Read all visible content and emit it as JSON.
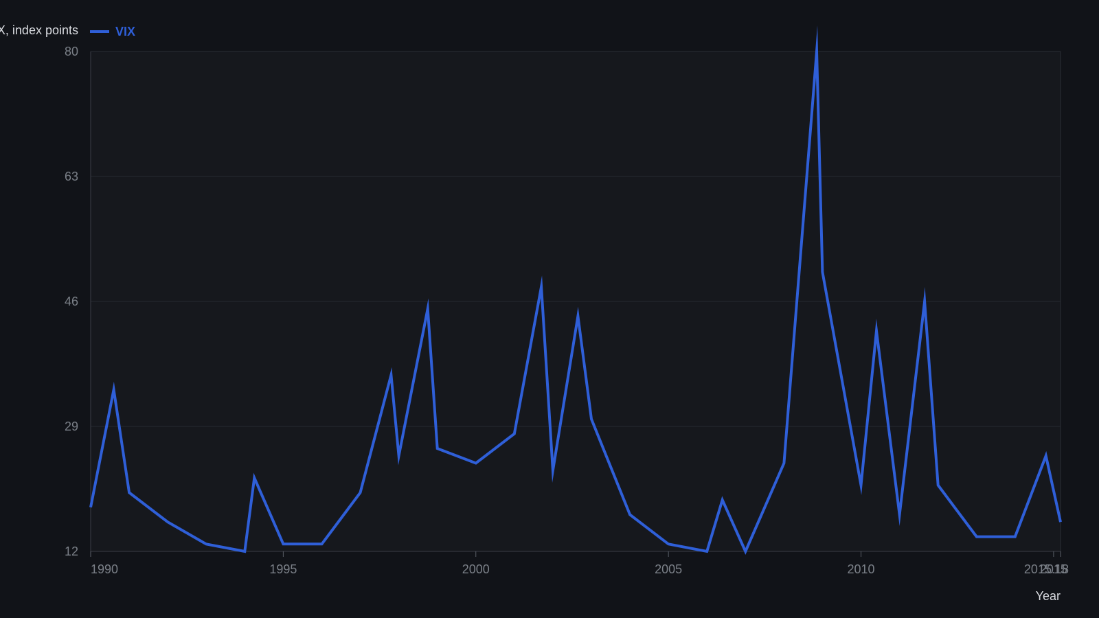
{
  "chart_data": {
    "type": "line",
    "xlabel": "Year",
    "ylabel": "VIX, index points",
    "xlim": [
      1990,
      2015.18
    ],
    "ylim": [
      12,
      80
    ],
    "x_ticks": [
      1990,
      1995,
      2000,
      2005,
      2010,
      2015,
      2015.18
    ],
    "x_tick_labels": [
      "1990",
      "1995",
      "2000",
      "2005",
      "2010",
      "2015",
      "2015.18"
    ],
    "y_ticks": [
      12,
      29,
      46,
      63,
      80
    ],
    "grid": true,
    "legend_position": "top-left",
    "series": [
      {
        "name": "VIX",
        "color": "#2f5fd8",
        "x": [
          1990,
          1990.6,
          1991,
          1992,
          1993,
          1994,
          1994.25,
          1995,
          1996,
          1997,
          1997.8,
          1998,
          1998.75,
          1999,
          2000,
          2001,
          2001.7,
          2002,
          2002.65,
          2003,
          2004,
          2005,
          2006,
          2006.4,
          2007,
          2008,
          2008.85,
          2009,
          2010,
          2010.4,
          2011,
          2011.65,
          2012,
          2013,
          2014,
          2014.8,
          2015.18
        ],
        "values": [
          18,
          34,
          20,
          16,
          13,
          12,
          22,
          13,
          13,
          20,
          36,
          25,
          45,
          26,
          24,
          28,
          48,
          23,
          44,
          30,
          17,
          13,
          12,
          19,
          12,
          24,
          80,
          50,
          21,
          42,
          17,
          46,
          21,
          14,
          14,
          25,
          16
        ]
      }
    ]
  }
}
